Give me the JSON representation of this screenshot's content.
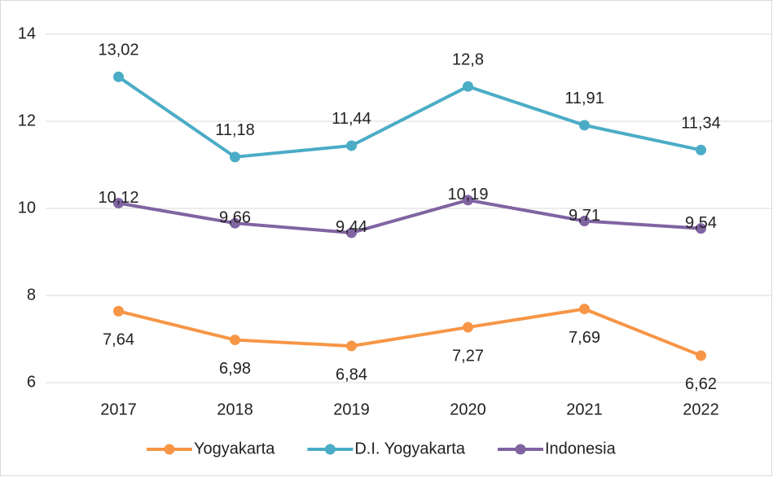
{
  "chart_data": {
    "type": "line",
    "categories": [
      "2017",
      "2018",
      "2019",
      "2020",
      "2021",
      "2022"
    ],
    "series": [
      {
        "name": "Yogyakarta",
        "color": "#f79646",
        "values": [
          7.64,
          6.98,
          6.84,
          7.27,
          7.69,
          6.62
        ],
        "value_labels": [
          "7,64",
          "6,98",
          "6,84",
          "7,27",
          "7,69",
          "6,62"
        ]
      },
      {
        "name": "D.I. Yogyakarta",
        "color": "#4bacc6",
        "values": [
          13.02,
          11.18,
          11.44,
          12.8,
          11.91,
          11.34
        ],
        "value_labels": [
          "13,02",
          "11,18",
          "11,44",
          "12,8",
          "11,91",
          "11,34"
        ]
      },
      {
        "name": "Indonesia",
        "color": "#8064a2",
        "values": [
          10.12,
          9.66,
          9.44,
          10.19,
          9.71,
          9.54
        ],
        "value_labels": [
          "10,12",
          "9,66",
          "9,44",
          "10,19",
          "9,71",
          "9,54"
        ]
      }
    ],
    "ylim": [
      6,
      14
    ],
    "yticks": [
      6,
      8,
      10,
      12,
      14
    ],
    "grid": true,
    "legend": "bottom"
  }
}
